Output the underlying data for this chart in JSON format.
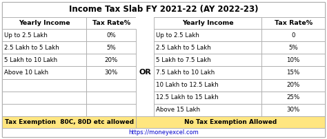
{
  "title": "Income Tax Slab FY 2021-22 (AY 2022-23)",
  "left_table": {
    "headers": [
      "Yearly Income",
      "Tax Rate%"
    ],
    "rows": [
      [
        "Up to 2.5 Lakh",
        "0%"
      ],
      [
        "2.5 Lakh to 5 Lakh",
        "5%"
      ],
      [
        "5 Lakh to 10 Lakh",
        "20%"
      ],
      [
        "Above 10 Lakh",
        "30%"
      ],
      [
        "",
        ""
      ],
      [
        "",
        ""
      ],
      [
        "",
        ""
      ]
    ],
    "footer": "Tax Exemption  80C, 80D etc allowed"
  },
  "right_table": {
    "headers": [
      "Yearly Income",
      "Tax Rate%"
    ],
    "rows": [
      [
        "Up to 2.5 Lakh",
        "0"
      ],
      [
        "2.5 Lakh to 5 Lakh",
        "5%"
      ],
      [
        "5 Lakh to 7.5 Lakh",
        "10%"
      ],
      [
        "7.5 Lakh to 10 Lakh",
        "15%"
      ],
      [
        "10 Lakh to 12.5 Lakh",
        "20%"
      ],
      [
        "12.5 Lakh to 15 Lakh",
        "25%"
      ],
      [
        "Above 15 Lakh",
        "30%"
      ]
    ],
    "footer": "No Tax Exemption Allowed"
  },
  "or_label": "OR",
  "website": "https://moneyexcel.com",
  "footer_bg": "#ffe680",
  "border_color": "#aaaaaa",
  "title_fontsize": 8.5,
  "header_fontsize": 6.8,
  "row_fontsize": 6.2,
  "footer_fontsize": 6.5,
  "website_fontsize": 6.0,
  "website_color": "#0000cc",
  "or_fontsize": 8.0
}
